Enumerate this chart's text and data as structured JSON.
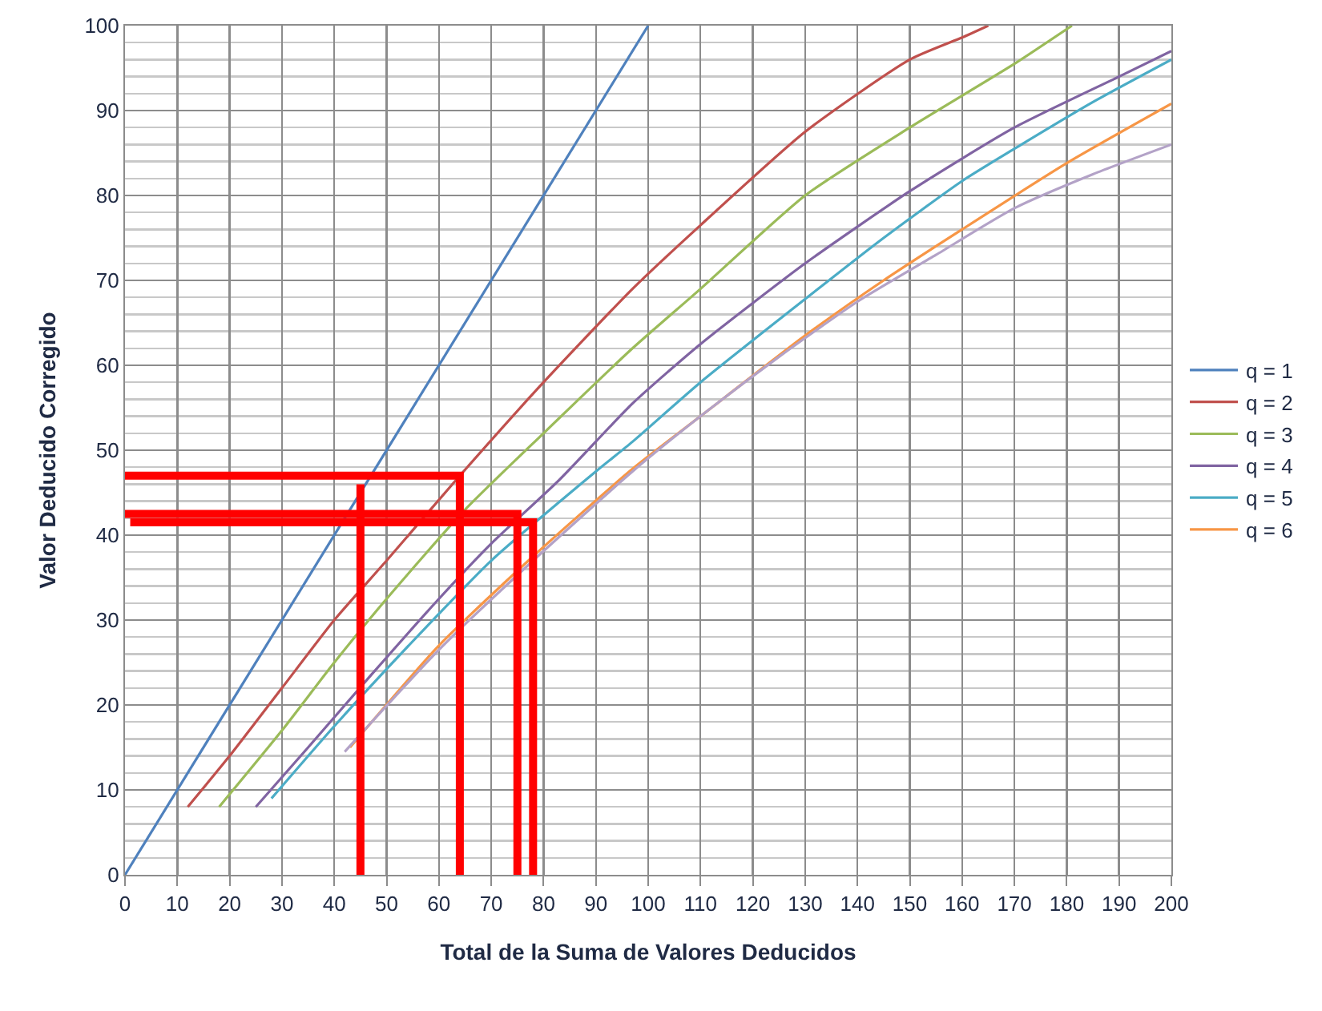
{
  "chart_data": {
    "type": "line",
    "xlabel": "Total de la Suma de Valores Deducidos",
    "ylabel": "Valor Deducido Corregido",
    "xlim": [
      0,
      200
    ],
    "xticks": [
      0,
      10,
      20,
      30,
      40,
      50,
      60,
      70,
      80,
      90,
      100,
      110,
      120,
      130,
      140,
      150,
      160,
      170,
      180,
      190,
      200
    ],
    "ylim": [
      0,
      100
    ],
    "yticks": [
      0,
      10,
      20,
      30,
      40,
      50,
      60,
      70,
      80,
      90,
      100
    ],
    "grid": true,
    "legend": "right",
    "marker": "none",
    "line_style": "solid",
    "series": [
      {
        "name": "q = 1",
        "color": "#4f81bd",
        "x": [
          0,
          100
        ],
        "values": [
          0,
          100
        ]
      },
      {
        "name": "q = 2",
        "color": "#c0504d",
        "x": [
          12,
          20,
          30,
          40,
          50,
          64,
          80,
          97,
          110,
          130,
          150,
          160,
          165
        ],
        "values": [
          8,
          14,
          22,
          30,
          37,
          47,
          58,
          69,
          76.5,
          87.5,
          96,
          98.6,
          100
        ]
      },
      {
        "name": "q = 3",
        "color": "#9bbb59",
        "x": [
          18,
          30,
          40,
          50,
          65,
          80,
          97,
          110,
          130,
          150,
          170,
          181
        ],
        "values": [
          8,
          17,
          25,
          32.5,
          43,
          52,
          62,
          69,
          80,
          88,
          95.5,
          100
        ]
      },
      {
        "name": "q = 4",
        "color": "#8064a2",
        "x": [
          25,
          35,
          47,
          60,
          70,
          83,
          97,
          110,
          130,
          150,
          170,
          190,
          200
        ],
        "values": [
          8,
          15,
          23.5,
          32.5,
          39,
          46.5,
          55.5,
          62.5,
          72,
          80.5,
          88,
          94,
          97
        ]
      },
      {
        "name": "q = 5",
        "color": "#4bacc6",
        "x": [
          28,
          40,
          55,
          70,
          90,
          97,
          110,
          130,
          145,
          160,
          170,
          185,
          200
        ],
        "values": [
          9,
          17.5,
          27.5,
          37,
          47.5,
          51,
          58,
          67.8,
          75,
          81.7,
          85.5,
          91,
          96
        ]
      },
      {
        "name": "q = 6",
        "color": "#f79646",
        "x": [
          43,
          60,
          78,
          97,
          110,
          130,
          145,
          160,
          180,
          200
        ],
        "values": [
          15,
          27,
          37.5,
          47.8,
          54,
          63.5,
          70,
          76,
          83.8,
          90.8
        ]
      },
      {
        "color": "#b3a2c7",
        "x": [
          42,
          60,
          78,
          97,
          110,
          125,
          140,
          155,
          170,
          185,
          200
        ],
        "values": [
          14.5,
          26.5,
          37,
          47.5,
          54,
          61,
          67.5,
          73,
          78.5,
          82.5,
          86
        ]
      },
      {
        "color": "#ff0000",
        "x": [
          0,
          64,
          64
        ],
        "values": [
          47,
          47,
          0
        ]
      },
      {
        "color": "#ff0000",
        "x": [
          45,
          45
        ],
        "values": [
          0,
          46
        ]
      },
      {
        "color": "#ff0000",
        "x": [
          0,
          75,
          75
        ],
        "values": [
          42.5,
          42.5,
          0
        ]
      },
      {
        "color": "#ff0000",
        "x": [
          1,
          78,
          78
        ],
        "values": [
          41.5,
          41.5,
          0
        ]
      }
    ]
  }
}
